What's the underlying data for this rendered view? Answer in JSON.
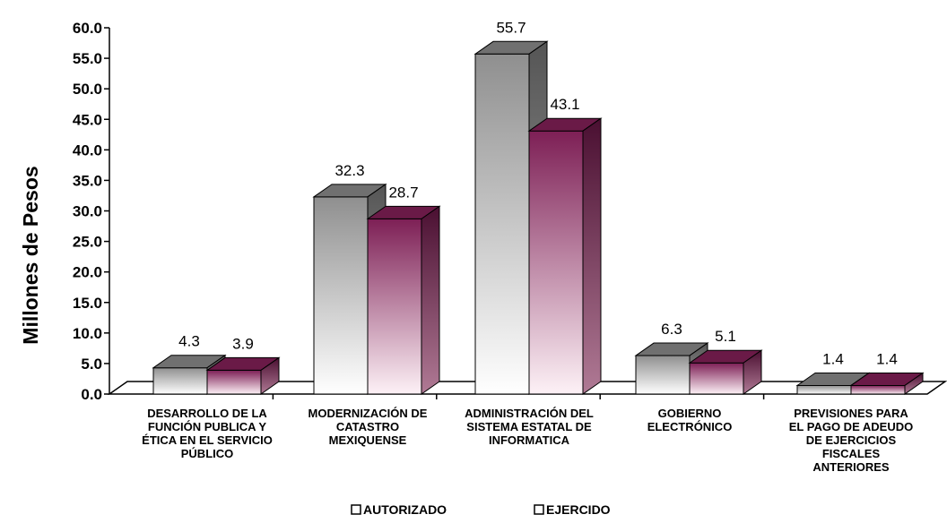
{
  "chart_data": {
    "type": "bar",
    "title": "",
    "xlabel": "",
    "ylabel": "Millones de Pesos",
    "ylim": [
      0,
      60
    ],
    "yticks": [
      "0.0",
      "5.0",
      "10.0",
      "15.0",
      "20.0",
      "25.0",
      "30.0",
      "35.0",
      "40.0",
      "45.0",
      "50.0",
      "55.0",
      "60.0"
    ],
    "grid": false,
    "legend_position": "bottom",
    "categories": [
      [
        "DESARROLLO DE LA",
        "FUNCIÓN PUBLICA Y",
        "ÉTICA EN EL SERVICIO",
        "PÚBLICO"
      ],
      [
        "MODERNIZACIÓN DE",
        "CATASTRO",
        "MEXIQUENSE"
      ],
      [
        "ADMINISTRACIÓN DEL",
        "SISTEMA ESTATAL DE",
        "INFORMATICA"
      ],
      [
        "GOBIERNO",
        "ELECTRÓNICO"
      ],
      [
        "PREVISIONES PARA",
        "EL PAGO DE ADEUDO",
        "DE EJERCICIOS",
        "FISCALES",
        "ANTERIORES"
      ]
    ],
    "series": [
      {
        "name": "AUTORIZADO",
        "values": [
          4.3,
          32.3,
          55.7,
          6.3,
          1.4
        ],
        "labels": [
          "4.3",
          "32.3",
          "55.7",
          "6.3",
          "1.4"
        ],
        "color": "#8c8c8c"
      },
      {
        "name": "EJERCIDO",
        "values": [
          3.9,
          28.7,
          43.1,
          5.1,
          1.4
        ],
        "labels": [
          "3.9",
          "28.7",
          "43.1",
          "5.1",
          "1.4"
        ],
        "color": "#8a2a60"
      }
    ]
  }
}
